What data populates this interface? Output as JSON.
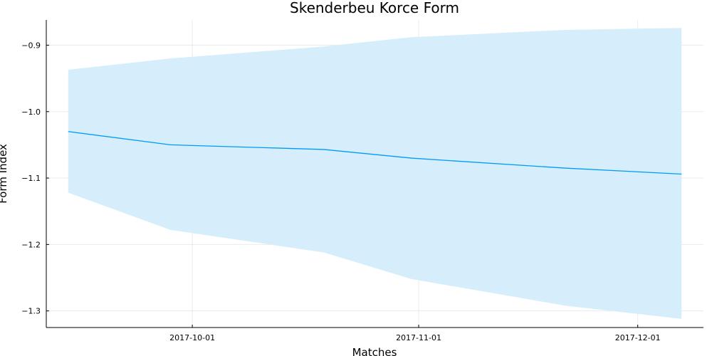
{
  "chart_data": {
    "type": "line",
    "title": "Skenderbeu Korce Form",
    "xlabel": "Matches",
    "ylabel": "Form Index",
    "x": [
      "2017-09-14",
      "2017-09-28",
      "2017-10-19",
      "2017-10-31",
      "2017-11-21",
      "2017-12-07"
    ],
    "series": [
      {
        "values": [
          -1.03,
          -1.05,
          -1.057,
          -1.07,
          -1.085,
          -1.094
        ],
        "band_upper": [
          -0.937,
          -0.92,
          -0.902,
          -0.888,
          -0.877,
          -0.874
        ],
        "band_lower": [
          -1.122,
          -1.178,
          -1.212,
          -1.252,
          -1.292,
          -1.312
        ],
        "color": "#009AF9",
        "band_color": "#D6EEFC"
      }
    ],
    "xticks": [
      "2017-10-01",
      "2017-11-01",
      "2017-12-01"
    ],
    "yticks": [
      -0.9,
      -1.0,
      -1.1,
      -1.2,
      -1.3
    ],
    "xlim": [
      "2017-09-11",
      "2017-12-10"
    ],
    "ylim": [
      -1.325,
      -0.862
    ],
    "grid": true,
    "legend": "none"
  }
}
